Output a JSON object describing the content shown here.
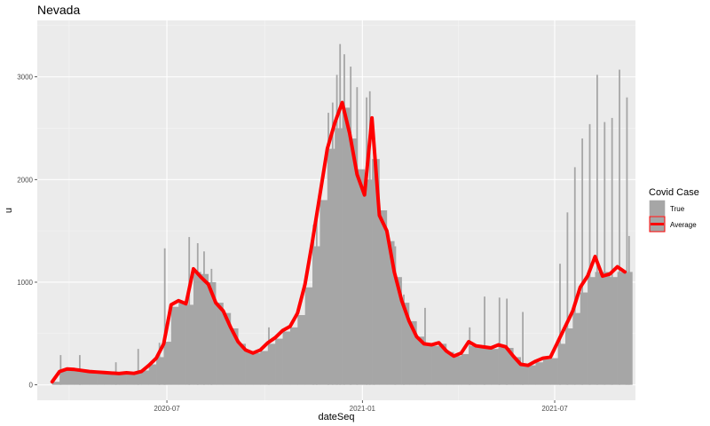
{
  "chart_data": {
    "type": "bar",
    "title": "Nevada",
    "xlabel": "dateSeq",
    "ylabel": "u",
    "x_ticks": [
      {
        "date": "2020-07-01",
        "label": "2020-07"
      },
      {
        "date": "2021-01-01",
        "label": "2021-01"
      },
      {
        "date": "2021-07-01",
        "label": "2021-07"
      }
    ],
    "x_range": [
      "2020-03-01",
      "2021-09-15"
    ],
    "y_ticks": [
      0,
      1000,
      2000,
      3000
    ],
    "ylim": [
      -150,
      3550
    ],
    "grid": true,
    "legend": {
      "title": "Covid Case",
      "position": "right",
      "entries": [
        {
          "name": "True",
          "color": "#a6a6a6",
          "kind": "bar"
        },
        {
          "name": "Average",
          "color": "#ff0000",
          "kind": "line"
        }
      ]
    },
    "series": [
      {
        "name": "True",
        "style": "bars",
        "color": "#a6a6a6",
        "points": [
          [
            "2020-03-15",
            30
          ],
          [
            "2020-03-22",
            150
          ],
          [
            "2020-03-29",
            160
          ],
          [
            "2020-04-05",
            150
          ],
          [
            "2020-04-12",
            140
          ],
          [
            "2020-04-19",
            130
          ],
          [
            "2020-04-26",
            125
          ],
          [
            "2020-05-03",
            120
          ],
          [
            "2020-05-10",
            115
          ],
          [
            "2020-05-17",
            110
          ],
          [
            "2020-05-24",
            120
          ],
          [
            "2020-05-31",
            115
          ],
          [
            "2020-06-07",
            140
          ],
          [
            "2020-06-14",
            200
          ],
          [
            "2020-06-21",
            270
          ],
          [
            "2020-06-28",
            420
          ],
          [
            "2020-07-05",
            760
          ],
          [
            "2020-07-12",
            800
          ],
          [
            "2020-07-19",
            780
          ],
          [
            "2020-07-26",
            1100
          ],
          [
            "2020-08-02",
            1080
          ],
          [
            "2020-08-09",
            1000
          ],
          [
            "2020-08-16",
            800
          ],
          [
            "2020-08-23",
            700
          ],
          [
            "2020-08-30",
            550
          ],
          [
            "2020-09-06",
            400
          ],
          [
            "2020-09-13",
            330
          ],
          [
            "2020-09-20",
            310
          ],
          [
            "2020-09-27",
            330
          ],
          [
            "2020-10-04",
            400
          ],
          [
            "2020-10-11",
            450
          ],
          [
            "2020-10-18",
            520
          ],
          [
            "2020-10-25",
            560
          ],
          [
            "2020-11-01",
            680
          ],
          [
            "2020-11-08",
            950
          ],
          [
            "2020-11-15",
            1350
          ],
          [
            "2020-11-22",
            1800
          ],
          [
            "2020-11-29",
            2300
          ],
          [
            "2020-12-06",
            2500
          ],
          [
            "2020-12-13",
            2700
          ],
          [
            "2020-12-20",
            2400
          ],
          [
            "2020-12-27",
            2100
          ],
          [
            "2021-01-03",
            2000
          ],
          [
            "2021-01-10",
            2200
          ],
          [
            "2021-01-17",
            1700
          ],
          [
            "2021-01-24",
            1400
          ],
          [
            "2021-01-31",
            1050
          ],
          [
            "2021-02-07",
            800
          ],
          [
            "2021-02-14",
            620
          ],
          [
            "2021-02-21",
            470
          ],
          [
            "2021-02-28",
            400
          ],
          [
            "2021-03-07",
            380
          ],
          [
            "2021-03-14",
            400
          ],
          [
            "2021-03-21",
            320
          ],
          [
            "2021-03-28",
            280
          ],
          [
            "2021-04-04",
            300
          ],
          [
            "2021-04-11",
            380
          ],
          [
            "2021-04-18",
            380
          ],
          [
            "2021-04-25",
            360
          ],
          [
            "2021-05-02",
            350
          ],
          [
            "2021-05-09",
            380
          ],
          [
            "2021-05-16",
            360
          ],
          [
            "2021-05-23",
            270
          ],
          [
            "2021-05-30",
            200
          ],
          [
            "2021-06-06",
            190
          ],
          [
            "2021-06-13",
            220
          ],
          [
            "2021-06-20",
            250
          ],
          [
            "2021-06-27",
            260
          ],
          [
            "2021-07-04",
            400
          ],
          [
            "2021-07-11",
            550
          ],
          [
            "2021-07-18",
            700
          ],
          [
            "2021-07-25",
            900
          ],
          [
            "2021-08-01",
            1050
          ],
          [
            "2021-08-08",
            1100
          ],
          [
            "2021-08-15",
            1100
          ],
          [
            "2021-08-22",
            1050
          ],
          [
            "2021-08-29",
            1100
          ],
          [
            "2021-09-05",
            1100
          ]
        ]
      },
      {
        "name": "Average",
        "style": "line",
        "color": "#ff0000",
        "points": [
          [
            "2020-03-15",
            30
          ],
          [
            "2020-03-22",
            130
          ],
          [
            "2020-03-29",
            155
          ],
          [
            "2020-04-05",
            150
          ],
          [
            "2020-04-12",
            140
          ],
          [
            "2020-04-19",
            130
          ],
          [
            "2020-04-26",
            125
          ],
          [
            "2020-05-03",
            120
          ],
          [
            "2020-05-10",
            115
          ],
          [
            "2020-05-17",
            110
          ],
          [
            "2020-05-24",
            118
          ],
          [
            "2020-05-31",
            112
          ],
          [
            "2020-06-07",
            130
          ],
          [
            "2020-06-14",
            190
          ],
          [
            "2020-06-21",
            260
          ],
          [
            "2020-06-28",
            400
          ],
          [
            "2020-07-05",
            780
          ],
          [
            "2020-07-12",
            820
          ],
          [
            "2020-07-19",
            790
          ],
          [
            "2020-07-26",
            1130
          ],
          [
            "2020-08-02",
            1050
          ],
          [
            "2020-08-09",
            980
          ],
          [
            "2020-08-16",
            800
          ],
          [
            "2020-08-23",
            720
          ],
          [
            "2020-08-30",
            560
          ],
          [
            "2020-09-06",
            420
          ],
          [
            "2020-09-13",
            340
          ],
          [
            "2020-09-20",
            310
          ],
          [
            "2020-09-27",
            340
          ],
          [
            "2020-10-04",
            410
          ],
          [
            "2020-10-11",
            460
          ],
          [
            "2020-10-18",
            530
          ],
          [
            "2020-10-25",
            570
          ],
          [
            "2020-11-01",
            700
          ],
          [
            "2020-11-08",
            980
          ],
          [
            "2020-11-15",
            1400
          ],
          [
            "2020-11-22",
            1850
          ],
          [
            "2020-11-29",
            2300
          ],
          [
            "2020-12-06",
            2550
          ],
          [
            "2020-12-13",
            2750
          ],
          [
            "2020-12-20",
            2450
          ],
          [
            "2020-12-27",
            2050
          ],
          [
            "2021-01-03",
            1850
          ],
          [
            "2021-01-10",
            2600
          ],
          [
            "2021-01-17",
            1650
          ],
          [
            "2021-01-24",
            1500
          ],
          [
            "2021-01-31",
            1100
          ],
          [
            "2021-02-07",
            820
          ],
          [
            "2021-02-14",
            620
          ],
          [
            "2021-02-21",
            470
          ],
          [
            "2021-02-28",
            400
          ],
          [
            "2021-03-07",
            390
          ],
          [
            "2021-03-14",
            410
          ],
          [
            "2021-03-21",
            330
          ],
          [
            "2021-03-28",
            280
          ],
          [
            "2021-04-04",
            310
          ],
          [
            "2021-04-11",
            420
          ],
          [
            "2021-04-18",
            380
          ],
          [
            "2021-04-25",
            370
          ],
          [
            "2021-05-02",
            360
          ],
          [
            "2021-05-09",
            390
          ],
          [
            "2021-05-16",
            370
          ],
          [
            "2021-05-23",
            280
          ],
          [
            "2021-05-30",
            200
          ],
          [
            "2021-06-06",
            190
          ],
          [
            "2021-06-13",
            230
          ],
          [
            "2021-06-20",
            260
          ],
          [
            "2021-06-27",
            270
          ],
          [
            "2021-07-04",
            420
          ],
          [
            "2021-07-11",
            570
          ],
          [
            "2021-07-18",
            720
          ],
          [
            "2021-07-25",
            950
          ],
          [
            "2021-08-01",
            1060
          ],
          [
            "2021-08-08",
            1250
          ],
          [
            "2021-08-15",
            1060
          ],
          [
            "2021-08-22",
            1080
          ],
          [
            "2021-08-29",
            1150
          ],
          [
            "2021-09-05",
            1100
          ]
        ]
      },
      {
        "name": "True",
        "style": "spikes",
        "color": "#a6a6a6",
        "points": [
          [
            "2020-03-23",
            290
          ],
          [
            "2020-04-10",
            290
          ],
          [
            "2020-05-14",
            220
          ],
          [
            "2020-06-04",
            350
          ],
          [
            "2020-06-24",
            410
          ],
          [
            "2020-06-29",
            1330
          ],
          [
            "2020-07-22",
            1440
          ],
          [
            "2020-07-30",
            1380
          ],
          [
            "2020-08-05",
            1300
          ],
          [
            "2020-08-12",
            1130
          ],
          [
            "2020-10-05",
            560
          ],
          [
            "2020-11-16",
            1560
          ],
          [
            "2020-11-19",
            1650
          ],
          [
            "2020-11-30",
            2650
          ],
          [
            "2020-12-04",
            2750
          ],
          [
            "2020-12-08",
            3020
          ],
          [
            "2020-12-11",
            3320
          ],
          [
            "2020-12-15",
            3220
          ],
          [
            "2020-12-21",
            3100
          ],
          [
            "2020-12-27",
            2900
          ],
          [
            "2021-01-05",
            2800
          ],
          [
            "2021-01-08",
            2860
          ],
          [
            "2021-01-12",
            2100
          ],
          [
            "2021-02-01",
            1350
          ],
          [
            "2021-02-09",
            880
          ],
          [
            "2021-03-01",
            750
          ],
          [
            "2021-04-12",
            560
          ],
          [
            "2021-04-26",
            860
          ],
          [
            "2021-05-10",
            850
          ],
          [
            "2021-05-17",
            840
          ],
          [
            "2021-06-01",
            710
          ],
          [
            "2021-07-06",
            1180
          ],
          [
            "2021-07-13",
            1680
          ],
          [
            "2021-07-20",
            2120
          ],
          [
            "2021-07-27",
            2400
          ],
          [
            "2021-08-03",
            2540
          ],
          [
            "2021-08-10",
            3020
          ],
          [
            "2021-08-17",
            2560
          ],
          [
            "2021-08-24",
            2600
          ],
          [
            "2021-08-31",
            3070
          ],
          [
            "2021-09-07",
            2800
          ],
          [
            "2021-09-09",
            1450
          ]
        ]
      }
    ]
  }
}
